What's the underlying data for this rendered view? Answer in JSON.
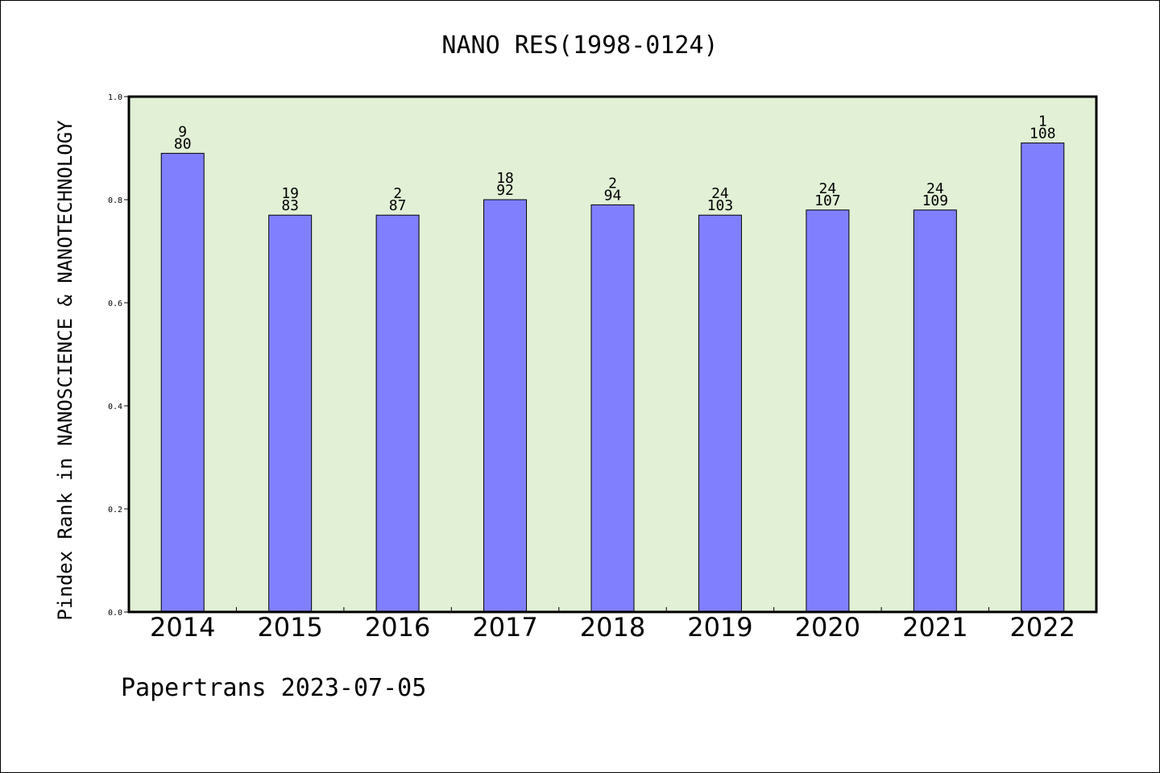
{
  "chart_data": {
    "type": "bar",
    "title": "NANO RES(1998-0124)",
    "ylabel": "Pindex Rank in NANOSCIENCE & NANOTECHNOLOGY",
    "xlabel": "",
    "ylim": [
      0,
      1.0
    ],
    "yticks": [
      "0.0",
      "0.2",
      "0.4",
      "0.6",
      "0.8",
      "1.0"
    ],
    "categories": [
      "2014",
      "2015",
      "2016",
      "2017",
      "2018",
      "2019",
      "2020",
      "2021",
      "2022"
    ],
    "values": [
      0.89,
      0.77,
      0.77,
      0.8,
      0.79,
      0.77,
      0.78,
      0.78,
      0.91
    ],
    "labels_top": [
      "9",
      "19",
      "2",
      "18",
      "2",
      "24",
      "24",
      "24",
      "1"
    ],
    "labels_bottom": [
      "80",
      "83",
      "87",
      "92",
      "94",
      "103",
      "107",
      "109",
      "108"
    ],
    "grid": false,
    "colors": {
      "plot_background": "#e2f0d6",
      "bar_fill": "#8080ff",
      "bar_stroke": "#000000"
    }
  },
  "footer": "Papertrans 2023-07-05"
}
